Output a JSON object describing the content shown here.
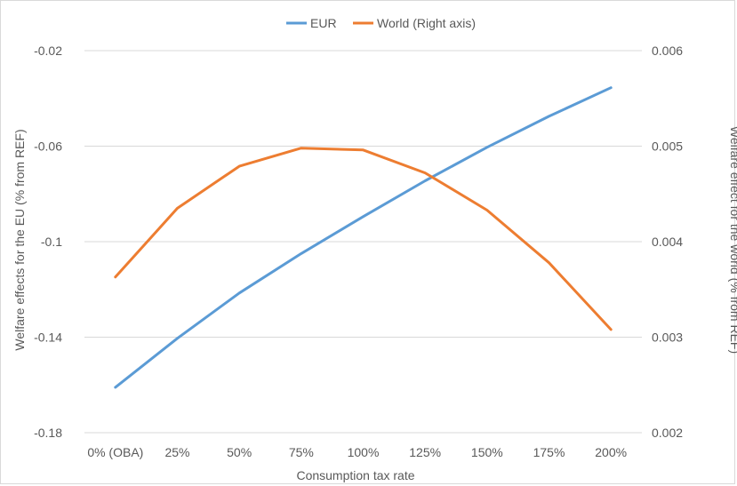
{
  "chart_data": {
    "type": "line",
    "title": "",
    "categories": [
      "0% (OBA)",
      "25%",
      "50%",
      "75%",
      "100%",
      "125%",
      "150%",
      "175%",
      "200%"
    ],
    "xlabel": "Consumption tax rate",
    "ylabel_left": "Welfare effects for the EU (% from REF)",
    "ylabel_right": "Welfare effect for the world (% from REF)",
    "ylim_left": [
      -0.18,
      -0.02
    ],
    "yticks_left": [
      "-0.02",
      "-0.06",
      "-0.1",
      "-0.14",
      "-0.18"
    ],
    "yticks_left_values": [
      -0.02,
      -0.06,
      -0.1,
      -0.14,
      -0.18
    ],
    "ylim_right": [
      0.002,
      0.006
    ],
    "yticks_right": [
      "0.006",
      "0.005",
      "0.004",
      "0.003",
      "0.002"
    ],
    "yticks_right_values": [
      0.006,
      0.005,
      0.004,
      0.003,
      0.002
    ],
    "grid": true,
    "legend_position": "top-center",
    "series": [
      {
        "name": "EUR",
        "axis": "left",
        "color": "#5b9bd5",
        "values": [
          -0.161,
          -0.1405,
          -0.1215,
          -0.105,
          -0.0895,
          -0.0745,
          -0.0605,
          -0.0475,
          -0.0355
        ]
      },
      {
        "name": "World (Right axis)",
        "axis": "right",
        "color": "#ed7d31",
        "values": [
          0.00363,
          0.00435,
          0.00479,
          0.00498,
          0.00496,
          0.00472,
          0.00433,
          0.00378,
          0.00308
        ]
      }
    ]
  }
}
